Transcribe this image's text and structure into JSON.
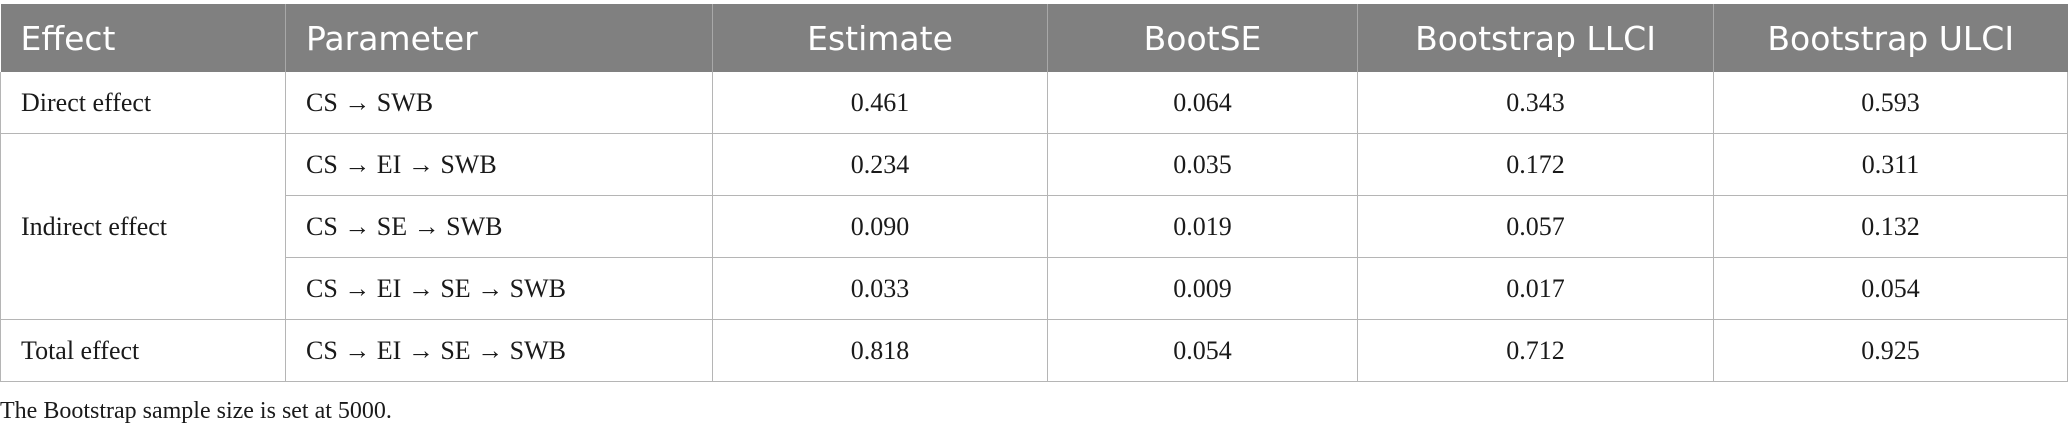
{
  "table": {
    "headers": [
      "Effect",
      "Parameter",
      "Estimate",
      "BootSE",
      "Bootstrap LLCI",
      "Bootstrap ULCI"
    ],
    "groups": [
      {
        "effect": "Direct effect",
        "rows": [
          {
            "parameter": "CS → SWB",
            "estimate": "0.461",
            "bootse": "0.064",
            "llci": "0.343",
            "ulci": "0.593"
          }
        ]
      },
      {
        "effect": "Indirect effect",
        "rows": [
          {
            "parameter": "CS → EI → SWB",
            "estimate": "0.234",
            "bootse": "0.035",
            "llci": "0.172",
            "ulci": "0.311"
          },
          {
            "parameter": "CS → SE → SWB",
            "estimate": "0.090",
            "bootse": "0.019",
            "llci": "0.057",
            "ulci": "0.132"
          },
          {
            "parameter": "CS → EI → SE → SWB",
            "estimate": "0.033",
            "bootse": "0.009",
            "llci": "0.017",
            "ulci": "0.054"
          }
        ]
      },
      {
        "effect": "Total effect",
        "rows": [
          {
            "parameter": "CS → EI → SE → SWB",
            "estimate": "0.818",
            "bootse": "0.054",
            "llci": "0.712",
            "ulci": "0.925"
          }
        ]
      }
    ]
  },
  "footnote": "The Bootstrap sample size is set at 5000."
}
